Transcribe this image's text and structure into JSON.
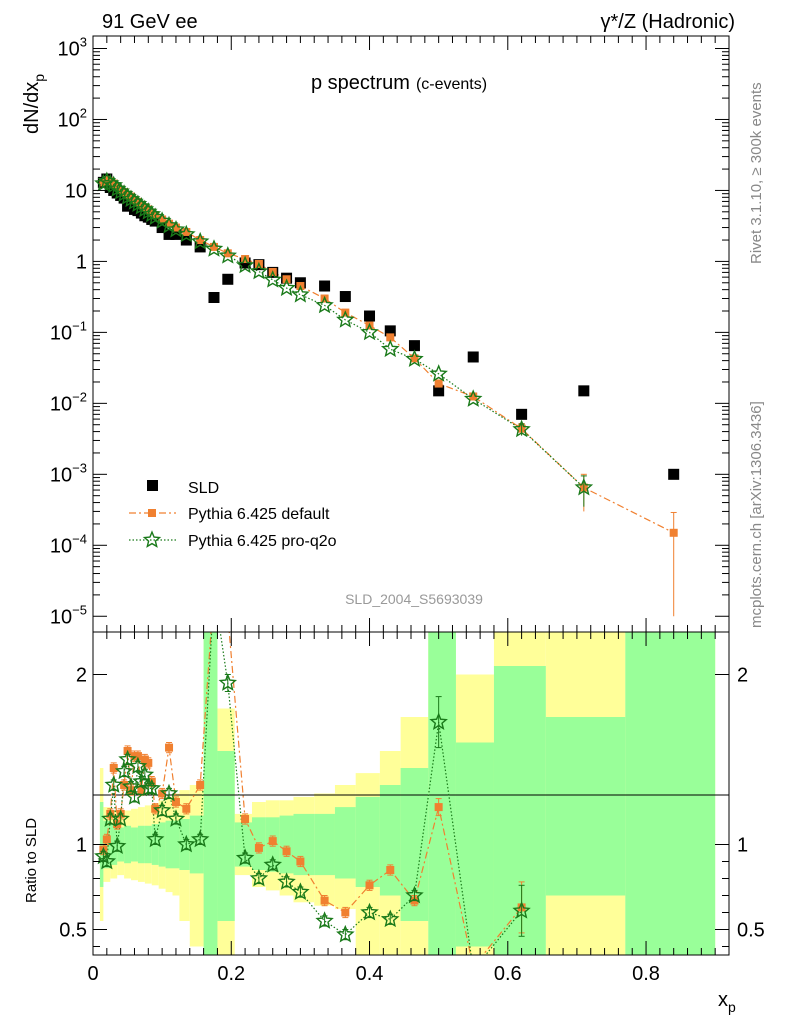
{
  "header": {
    "left": "91 GeV ee",
    "right": "γ*/Z (Hadronic)"
  },
  "side": {
    "rivet": "Rivet 3.1.10, ≥ 300k events",
    "mcplots": "mcplots.cern.ch [arXiv:1306.3436]"
  },
  "watermark": "SLD_2004_S5693039",
  "colors": {
    "sld": "#000000",
    "default": "#f08030",
    "proq2o": "#1a7a1a",
    "band_inner": "#99ff99",
    "band_outer": "#ffff99"
  },
  "chart_data": [
    {
      "type": "scatter",
      "title": "p spectrum",
      "subtitle": "(c-events)",
      "ylabel": "dN/dx",
      "ylabel_sub": "p",
      "yscale": "log",
      "ylim": [
        6e-06,
        1500
      ],
      "xlim": [
        0,
        0.92
      ],
      "legend": {
        "placement": "bottom-left",
        "entries": [
          "SLD",
          "Pythia 6.425 default",
          "Pythia 6.425 pro-q2o"
        ]
      },
      "series": [
        {
          "name": "SLD",
          "marker": "square",
          "x": [
            0.015,
            0.02,
            0.025,
            0.03,
            0.035,
            0.04,
            0.045,
            0.05,
            0.055,
            0.06,
            0.065,
            0.07,
            0.075,
            0.08,
            0.085,
            0.09,
            0.1,
            0.11,
            0.12,
            0.135,
            0.155,
            0.175,
            0.195,
            0.22,
            0.24,
            0.26,
            0.28,
            0.3,
            0.335,
            0.365,
            0.4,
            0.43,
            0.465,
            0.5,
            0.55,
            0.62,
            0.71,
            0.84
          ],
          "y": [
            13,
            14.5,
            11,
            10,
            9.2,
            8.5,
            7.8,
            6,
            6.5,
            5.4,
            5.2,
            4.8,
            4.4,
            4.2,
            3.9,
            3.7,
            3.0,
            2.4,
            2.4,
            2.0,
            1.6,
            0.31,
            0.56,
            0.95,
            0.9,
            0.7,
            0.58,
            0.5,
            0.45,
            0.32,
            0.17,
            0.105,
            0.065,
            0.015,
            0.045,
            0.007,
            0.015,
            0.001
          ]
        },
        {
          "name": "Pythia 6.425 default",
          "marker": "square",
          "x": [
            0.015,
            0.02,
            0.025,
            0.03,
            0.035,
            0.04,
            0.045,
            0.05,
            0.055,
            0.06,
            0.065,
            0.07,
            0.075,
            0.08,
            0.085,
            0.09,
            0.1,
            0.11,
            0.12,
            0.135,
            0.155,
            0.175,
            0.195,
            0.22,
            0.24,
            0.26,
            0.28,
            0.3,
            0.335,
            0.365,
            0.4,
            0.43,
            0.465,
            0.5,
            0.55,
            0.62,
            0.71,
            0.84
          ],
          "y": [
            13,
            14,
            13.5,
            12.5,
            11.2,
            10.3,
            9.5,
            8.7,
            8.2,
            7.4,
            6.9,
            6.3,
            5.8,
            5.4,
            4.9,
            4.5,
            3.9,
            3.4,
            3.0,
            2.6,
            2.0,
            1.6,
            1.3,
            1.08,
            0.92,
            0.71,
            0.56,
            0.45,
            0.3,
            0.19,
            0.125,
            0.085,
            0.043,
            0.019,
            0.0125,
            0.0044,
            0.00065,
            0.00015
          ],
          "yerr": [
            0,
            0,
            0,
            0,
            0,
            0,
            0,
            0,
            0,
            0,
            0,
            0,
            0,
            0,
            0,
            0,
            0,
            0,
            0,
            0,
            0,
            0,
            0,
            0,
            0,
            0,
            0,
            0,
            0,
            0,
            0,
            0,
            0,
            0,
            0,
            0.0008,
            0.00035,
            0.00014
          ]
        },
        {
          "name": "Pythia 6.425 pro-q2o",
          "marker": "star",
          "x": [
            0.015,
            0.02,
            0.025,
            0.03,
            0.035,
            0.04,
            0.045,
            0.05,
            0.055,
            0.06,
            0.065,
            0.07,
            0.075,
            0.08,
            0.085,
            0.09,
            0.1,
            0.11,
            0.12,
            0.135,
            0.155,
            0.175,
            0.195,
            0.22,
            0.24,
            0.26,
            0.28,
            0.3,
            0.335,
            0.365,
            0.4,
            0.43,
            0.465,
            0.5,
            0.55,
            0.62,
            0.71,
            0.84
          ],
          "y": [
            12.5,
            13.5,
            12.5,
            11.8,
            10.5,
            9.6,
            8.9,
            8.1,
            7.5,
            6.9,
            6.4,
            5.9,
            5.4,
            5.0,
            4.6,
            4.2,
            3.7,
            3.2,
            2.8,
            2.4,
            1.9,
            1.5,
            1.2,
            0.88,
            0.72,
            0.55,
            0.42,
            0.34,
            0.24,
            0.15,
            0.1,
            0.058,
            0.042,
            0.026,
            0.0115,
            0.0043,
            0.00065,
            null
          ],
          "yerr": [
            0,
            0,
            0,
            0,
            0,
            0,
            0,
            0,
            0,
            0,
            0,
            0,
            0,
            0,
            0,
            0,
            0,
            0,
            0,
            0,
            0,
            0,
            0,
            0,
            0,
            0,
            0,
            0,
            0,
            0,
            0,
            0,
            0,
            0,
            0,
            0.0008,
            0.0003,
            0
          ]
        }
      ],
      "yticks": [
        {
          "v": 1e-05,
          "base": "10",
          "exp": "−5"
        },
        {
          "v": 0.0001,
          "base": "10",
          "exp": "−4"
        },
        {
          "v": 0.001,
          "base": "10",
          "exp": "−3"
        },
        {
          "v": 0.01,
          "base": "10",
          "exp": "−2"
        },
        {
          "v": 0.1,
          "base": "10",
          "exp": "−1"
        },
        {
          "v": 1,
          "base": "1",
          "exp": ""
        },
        {
          "v": 10,
          "base": "10",
          "exp": ""
        },
        {
          "v": 100,
          "base": "10",
          "exp": "2"
        },
        {
          "v": 1000,
          "base": "10",
          "exp": "3"
        }
      ]
    },
    {
      "type": "line",
      "ylabel": "Ratio to SLD",
      "xlabel": "x",
      "xlabel_sub": "p",
      "xlim": [
        0,
        0.92
      ],
      "ylim": [
        0.35,
        2.25
      ],
      "xticks": [
        {
          "v": 0,
          "label": "0"
        },
        {
          "v": 0.2,
          "label": "0.2"
        },
        {
          "v": 0.4,
          "label": "0.4"
        },
        {
          "v": 0.6,
          "label": "0.6"
        },
        {
          "v": 0.8,
          "label": "0.8"
        }
      ],
      "yticks": [
        {
          "v": 0.5,
          "label": "0.5"
        },
        {
          "v": 1,
          "label": "1"
        },
        {
          "v": 2,
          "label": "2"
        }
      ],
      "bands": [
        {
          "x0": 0.01,
          "x1": 0.015,
          "inner": [
            0.75,
            1.25
          ],
          "outer": [
            0.55,
            1.45
          ]
        },
        {
          "x0": 0.015,
          "x1": 0.025,
          "inner": [
            0.86,
            1.14
          ],
          "outer": [
            0.78,
            1.22
          ]
        },
        {
          "x0": 0.025,
          "x1": 0.035,
          "inner": [
            0.88,
            1.12
          ],
          "outer": [
            0.8,
            1.2
          ]
        },
        {
          "x0": 0.035,
          "x1": 0.045,
          "inner": [
            0.9,
            1.1
          ],
          "outer": [
            0.82,
            1.18
          ]
        },
        {
          "x0": 0.045,
          "x1": 0.055,
          "inner": [
            0.89,
            1.11
          ],
          "outer": [
            0.8,
            1.2
          ]
        },
        {
          "x0": 0.055,
          "x1": 0.065,
          "inner": [
            0.9,
            1.1
          ],
          "outer": [
            0.79,
            1.21
          ]
        },
        {
          "x0": 0.065,
          "x1": 0.075,
          "inner": [
            0.89,
            1.11
          ],
          "outer": [
            0.78,
            1.22
          ]
        },
        {
          "x0": 0.075,
          "x1": 0.085,
          "inner": [
            0.89,
            1.11
          ],
          "outer": [
            0.77,
            1.23
          ]
        },
        {
          "x0": 0.085,
          "x1": 0.095,
          "inner": [
            0.88,
            1.12
          ],
          "outer": [
            0.76,
            1.24
          ]
        },
        {
          "x0": 0.095,
          "x1": 0.105,
          "inner": [
            0.87,
            1.13
          ],
          "outer": [
            0.74,
            1.26
          ]
        },
        {
          "x0": 0.105,
          "x1": 0.115,
          "inner": [
            0.86,
            1.14
          ],
          "outer": [
            0.72,
            1.28
          ]
        },
        {
          "x0": 0.115,
          "x1": 0.125,
          "inner": [
            0.86,
            1.14
          ],
          "outer": [
            0.7,
            1.3
          ]
        },
        {
          "x0": 0.125,
          "x1": 0.14,
          "inner": [
            0.85,
            1.15
          ],
          "outer": [
            0.55,
            1.32
          ]
        },
        {
          "x0": 0.14,
          "x1": 0.16,
          "inner": [
            0.83,
            1.17
          ],
          "outer": [
            0.4,
            1.35
          ]
        },
        {
          "x0": 0.16,
          "x1": 0.18,
          "inner": [
            0.35,
            2.3
          ],
          "outer": [
            0.35,
            2.3
          ]
        },
        {
          "x0": 0.18,
          "x1": 0.205,
          "inner": [
            0.55,
            1.55
          ],
          "outer": [
            0.35,
            1.8
          ]
        },
        {
          "x0": 0.205,
          "x1": 0.23,
          "inner": [
            0.87,
            1.13
          ],
          "outer": [
            0.82,
            1.18
          ]
        },
        {
          "x0": 0.23,
          "x1": 0.25,
          "inner": [
            0.85,
            1.16
          ],
          "outer": [
            0.75,
            1.25
          ]
        },
        {
          "x0": 0.25,
          "x1": 0.27,
          "inner": [
            0.84,
            1.16
          ],
          "outer": [
            0.73,
            1.26
          ]
        },
        {
          "x0": 0.27,
          "x1": 0.29,
          "inner": [
            0.83,
            1.17
          ],
          "outer": [
            0.7,
            1.26
          ]
        },
        {
          "x0": 0.29,
          "x1": 0.32,
          "inner": [
            0.82,
            1.18
          ],
          "outer": [
            0.66,
            1.28
          ]
        },
        {
          "x0": 0.32,
          "x1": 0.35,
          "inner": [
            0.82,
            1.18
          ],
          "outer": [
            0.64,
            1.3
          ]
        },
        {
          "x0": 0.35,
          "x1": 0.38,
          "inner": [
            0.8,
            1.22
          ],
          "outer": [
            0.62,
            1.35
          ]
        },
        {
          "x0": 0.38,
          "x1": 0.415,
          "inner": [
            0.75,
            1.28
          ],
          "outer": [
            0.35,
            1.42
          ]
        },
        {
          "x0": 0.415,
          "x1": 0.445,
          "inner": [
            0.7,
            1.35
          ],
          "outer": [
            0.35,
            1.55
          ]
        },
        {
          "x0": 0.445,
          "x1": 0.485,
          "inner": [
            0.55,
            1.45
          ],
          "outer": [
            0.35,
            1.75
          ]
        },
        {
          "x0": 0.485,
          "x1": 0.525,
          "inner": [
            0.35,
            2.3
          ],
          "outer": [
            0.35,
            2.3
          ]
        },
        {
          "x0": 0.525,
          "x1": 0.58,
          "inner": [
            0.4,
            1.6
          ],
          "outer": [
            0.35,
            2.0
          ]
        },
        {
          "x0": 0.58,
          "x1": 0.655,
          "inner": [
            0.35,
            2.05
          ],
          "outer": [
            0.35,
            2.3
          ]
        },
        {
          "x0": 0.655,
          "x1": 0.77,
          "inner": [
            0.7,
            1.75
          ],
          "outer": [
            0.35,
            2.3
          ]
        },
        {
          "x0": 0.77,
          "x1": 0.9,
          "inner": [
            0.35,
            2.3
          ],
          "outer": [
            0.35,
            2.3
          ]
        }
      ],
      "series": [
        {
          "name": "Pythia 6.425 default",
          "marker": "square",
          "x": [
            0.015,
            0.02,
            0.025,
            0.03,
            0.035,
            0.04,
            0.045,
            0.05,
            0.055,
            0.06,
            0.065,
            0.07,
            0.075,
            0.08,
            0.085,
            0.09,
            0.1,
            0.11,
            0.12,
            0.135,
            0.155,
            0.175,
            0.195,
            0.22,
            0.24,
            0.26,
            0.28,
            0.3,
            0.335,
            0.365,
            0.4,
            0.43,
            0.465,
            0.5,
            0.55,
            0.62
          ],
          "y": [
            0.97,
            1.03,
            1.18,
            1.45,
            1.12,
            1.18,
            1.35,
            1.55,
            1.32,
            1.52,
            1.52,
            1.32,
            1.5,
            1.48,
            1.37,
            1.21,
            1.3,
            1.57,
            1.25,
            1.21,
            1.35,
            2.5,
            2.35,
            1.15,
            0.98,
            1.02,
            0.96,
            0.9,
            0.67,
            0.6,
            0.76,
            0.85,
            0.67,
            1.22,
            0.28,
            0.63
          ],
          "yerr": [
            0.03,
            0.03,
            0.03,
            0.03,
            0.03,
            0.03,
            0.03,
            0.03,
            0.03,
            0.03,
            0.03,
            0.03,
            0.03,
            0.03,
            0.03,
            0.03,
            0.03,
            0.03,
            0.03,
            0.03,
            0.03,
            0.05,
            0.05,
            0.03,
            0.03,
            0.03,
            0.03,
            0.03,
            0.03,
            0.03,
            0.03,
            0.03,
            0.03,
            0.05,
            0.05,
            0.15
          ]
        },
        {
          "name": "Pythia 6.425 pro-q2o",
          "marker": "star",
          "x": [
            0.015,
            0.02,
            0.025,
            0.03,
            0.035,
            0.04,
            0.045,
            0.05,
            0.055,
            0.06,
            0.065,
            0.07,
            0.075,
            0.08,
            0.085,
            0.09,
            0.1,
            0.11,
            0.12,
            0.135,
            0.155,
            0.175,
            0.195,
            0.22,
            0.24,
            0.26,
            0.28,
            0.3,
            0.335,
            0.365,
            0.4,
            0.43,
            0.465,
            0.5,
            0.55,
            0.62
          ],
          "y": [
            0.93,
            0.9,
            1.15,
            1.35,
            0.99,
            1.15,
            1.43,
            1.5,
            1.34,
            1.28,
            1.46,
            1.37,
            1.41,
            1.33,
            1.33,
            1.03,
            1.2,
            1.3,
            1.15,
            1.0,
            1.03,
            2.5,
            1.95,
            0.92,
            0.8,
            0.88,
            0.78,
            0.72,
            0.55,
            0.47,
            0.6,
            0.56,
            0.7,
            1.72,
            0.26,
            0.61
          ],
          "yerr": [
            0.03,
            0.03,
            0.03,
            0.03,
            0.03,
            0.03,
            0.03,
            0.03,
            0.03,
            0.03,
            0.03,
            0.03,
            0.03,
            0.03,
            0.03,
            0.03,
            0.03,
            0.03,
            0.03,
            0.03,
            0.03,
            0.05,
            0.05,
            0.03,
            0.03,
            0.03,
            0.03,
            0.03,
            0.03,
            0.03,
            0.03,
            0.03,
            0.03,
            0.15,
            0.05,
            0.15
          ]
        }
      ]
    }
  ]
}
